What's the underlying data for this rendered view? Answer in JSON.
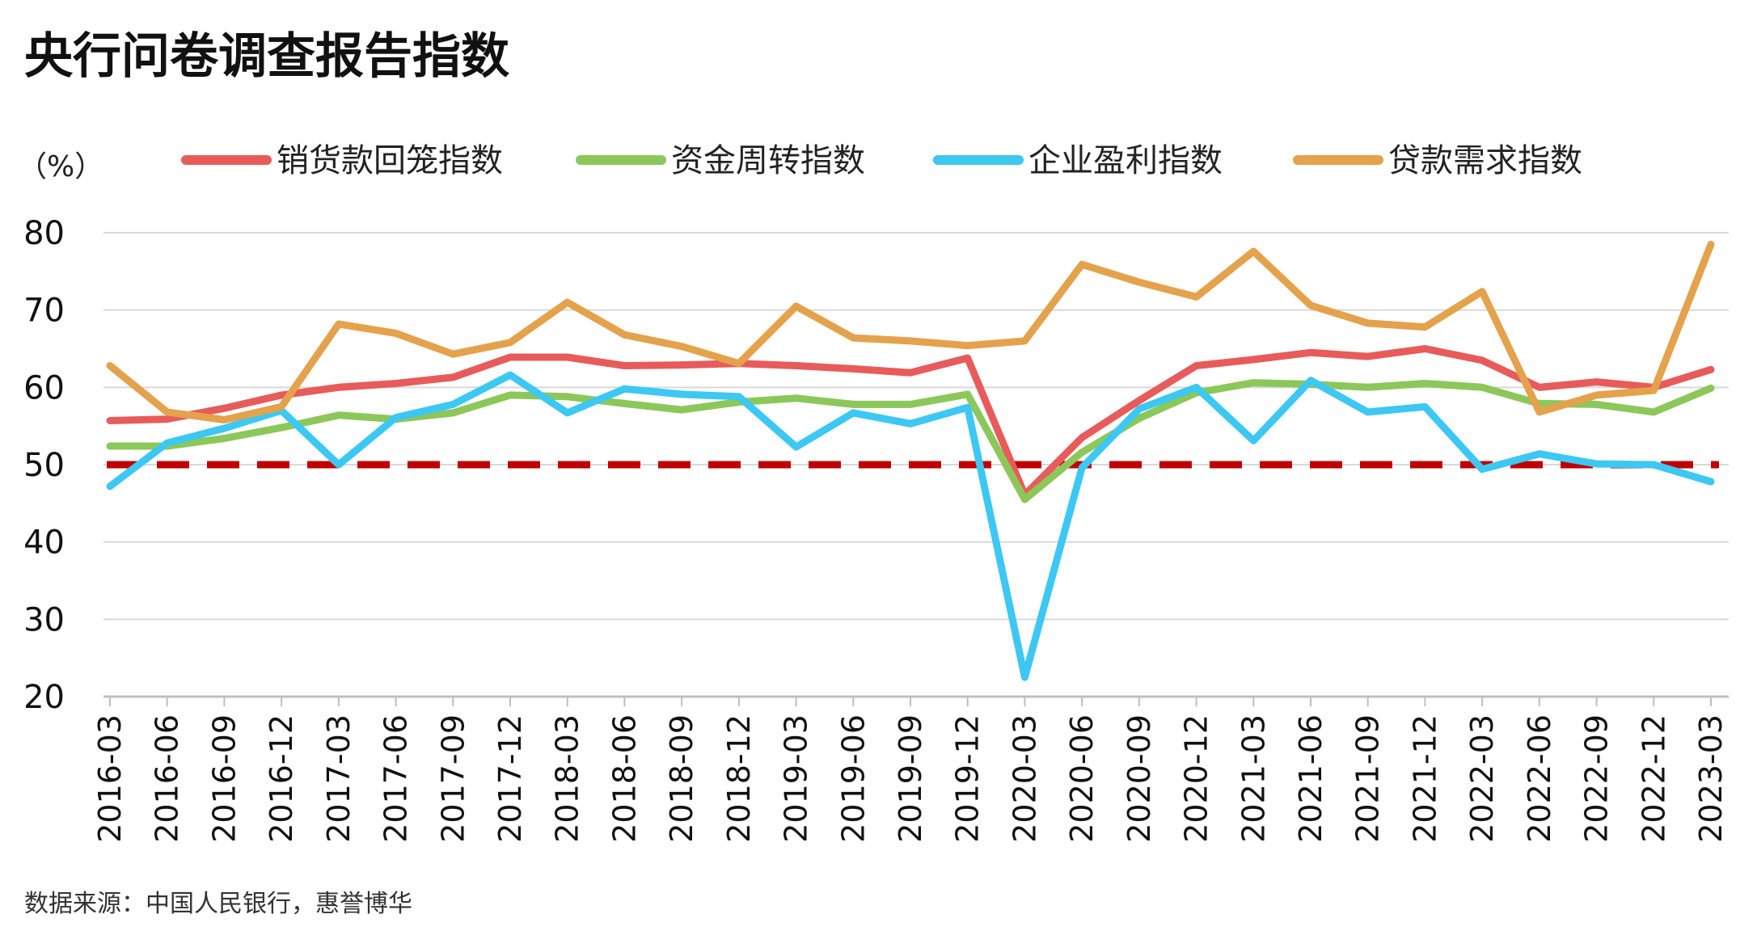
{
  "title": "央行问卷调查报告指数",
  "unit_label": "（%）",
  "source": "数据来源：中国人民银行，惠誉博华",
  "colors": {
    "sales_payment": "#e85b5b",
    "capital_turnover": "#8cc75a",
    "profit": "#3cc8f2",
    "loan_demand": "#e4a24c",
    "reference": "#c00000",
    "grid": "#d9d9d9",
    "axis": "#bfbfbf"
  },
  "chart_data": {
    "type": "line",
    "title": "央行问卷调查报告指数",
    "ylabel": "（%）",
    "ylim": [
      20,
      80
    ],
    "yticks": [
      20,
      30,
      40,
      50,
      60,
      70,
      80
    ],
    "grid": "horizontal",
    "legend_position": "top",
    "reference_line": {
      "value": 50,
      "style": "dashed"
    },
    "x": [
      "2016-03",
      "2016-06",
      "2016-09",
      "2016-12",
      "2017-03",
      "2017-06",
      "2017-09",
      "2017-12",
      "2018-03",
      "2018-06",
      "2018-09",
      "2018-12",
      "2019-03",
      "2019-06",
      "2019-09",
      "2019-12",
      "2020-03",
      "2020-06",
      "2020-09",
      "2020-12",
      "2021-03",
      "2021-06",
      "2021-09",
      "2021-12",
      "2022-03",
      "2022-06",
      "2022-09",
      "2022-12",
      "2023-03"
    ],
    "series": [
      {
        "name": "销货款回笼指数",
        "color_key": "sales_payment",
        "values": [
          55.7,
          55.9,
          57.3,
          59.0,
          60.0,
          60.5,
          61.3,
          63.9,
          63.9,
          62.8,
          62.9,
          63.1,
          62.8,
          62.4,
          61.9,
          63.8,
          46.1,
          53.5,
          58.3,
          62.8,
          63.6,
          64.5,
          64.0,
          65.0,
          63.5,
          60.0,
          60.7,
          60.0,
          62.3
        ]
      },
      {
        "name": "资金周转指数",
        "color_key": "capital_turnover",
        "values": [
          52.4,
          52.4,
          53.4,
          54.8,
          56.4,
          55.9,
          56.7,
          59.0,
          58.8,
          57.9,
          57.1,
          58.1,
          58.6,
          57.8,
          57.8,
          59.1,
          45.5,
          51.6,
          56.0,
          59.3,
          60.6,
          60.4,
          60.0,
          60.5,
          60.0,
          57.9,
          57.8,
          56.8,
          59.9
        ]
      },
      {
        "name": "企业盈利指数",
        "color_key": "profit",
        "values": [
          47.2,
          52.8,
          54.7,
          57.0,
          50.0,
          56.1,
          57.8,
          61.6,
          56.7,
          59.8,
          59.1,
          58.8,
          52.3,
          56.7,
          55.3,
          57.4,
          22.5,
          49.6,
          57.2,
          60.0,
          53.1,
          60.9,
          56.8,
          57.5,
          49.4,
          51.4,
          50.1,
          50.0,
          47.8
        ]
      },
      {
        "name": "贷款需求指数",
        "color_key": "loan_demand",
        "values": [
          62.8,
          56.8,
          55.8,
          57.5,
          68.2,
          67.0,
          64.3,
          65.8,
          71.0,
          66.8,
          65.3,
          63.1,
          70.5,
          66.4,
          66.0,
          65.4,
          66.0,
          75.9,
          73.6,
          71.7,
          77.6,
          70.6,
          68.3,
          67.8,
          72.4,
          56.8,
          59.0,
          59.6,
          78.5
        ]
      }
    ]
  }
}
